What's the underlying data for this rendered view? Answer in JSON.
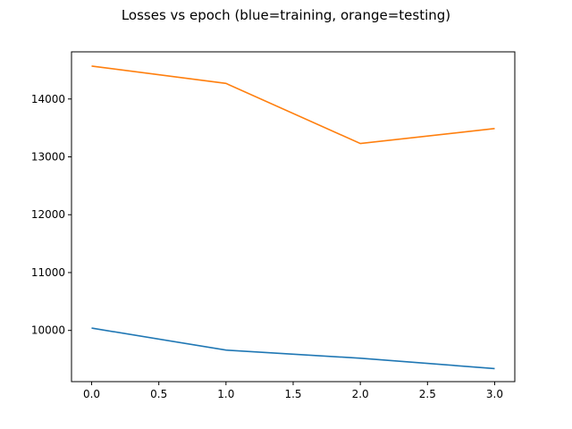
{
  "chart_data": {
    "type": "line",
    "title": "Losses vs epoch (blue=training, orange=testing)",
    "xlabel": "",
    "ylabel": "",
    "x": [
      0,
      1,
      2,
      3
    ],
    "xlim": [
      -0.15,
      3.15
    ],
    "ylim": [
      9115,
      14815
    ],
    "xticks": [
      0.0,
      0.5,
      1.0,
      1.5,
      2.0,
      2.5,
      3.0
    ],
    "xtick_labels": [
      "0.0",
      "0.5",
      "1.0",
      "1.5",
      "2.0",
      "2.5",
      "3.0"
    ],
    "yticks": [
      10000,
      11000,
      12000,
      13000,
      14000
    ],
    "ytick_labels": [
      "10000",
      "11000",
      "12000",
      "13000",
      "14000"
    ],
    "grid": false,
    "series": [
      {
        "values": [
          10040,
          9660,
          9520,
          9340
        ],
        "color": "#1f77b4"
      },
      {
        "values": [
          14570,
          14270,
          13230,
          13490
        ],
        "color": "#ff7f0e"
      }
    ]
  }
}
